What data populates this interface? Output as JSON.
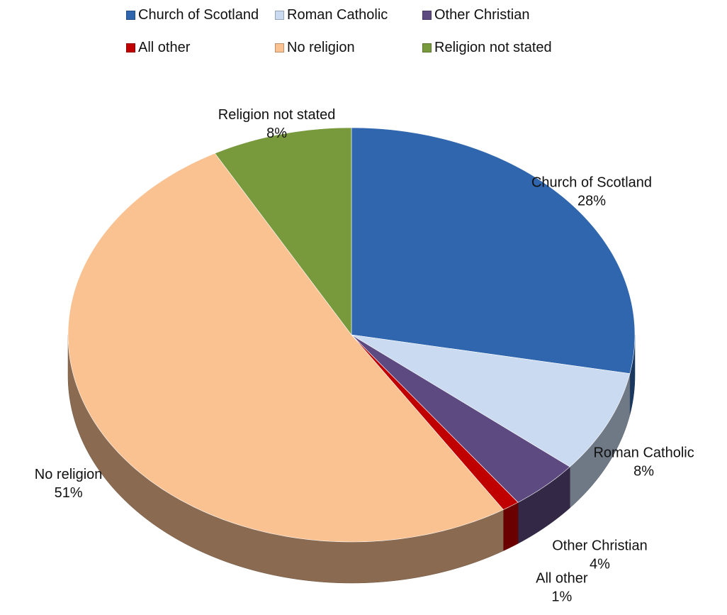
{
  "chart_data": {
    "type": "pie",
    "style": "3d",
    "title": "",
    "legend_position": "top",
    "slices": [
      {
        "label": "Church of Scotland",
        "value": 28,
        "display": "28%",
        "color": "#2f66ad"
      },
      {
        "label": "Roman Catholic",
        "value": 8,
        "display": "8%",
        "color": "#c9daf1"
      },
      {
        "label": "Other Christian",
        "value": 4,
        "display": "4%",
        "color": "#5c4a80"
      },
      {
        "label": "All other",
        "value": 1,
        "display": "1%",
        "color": "#c00000"
      },
      {
        "label": "No religion",
        "value": 51,
        "display": "51%",
        "color": "#fac191"
      },
      {
        "label": "Religion not stated",
        "value": 8,
        "display": "8%",
        "color": "#789a3c"
      }
    ]
  }
}
